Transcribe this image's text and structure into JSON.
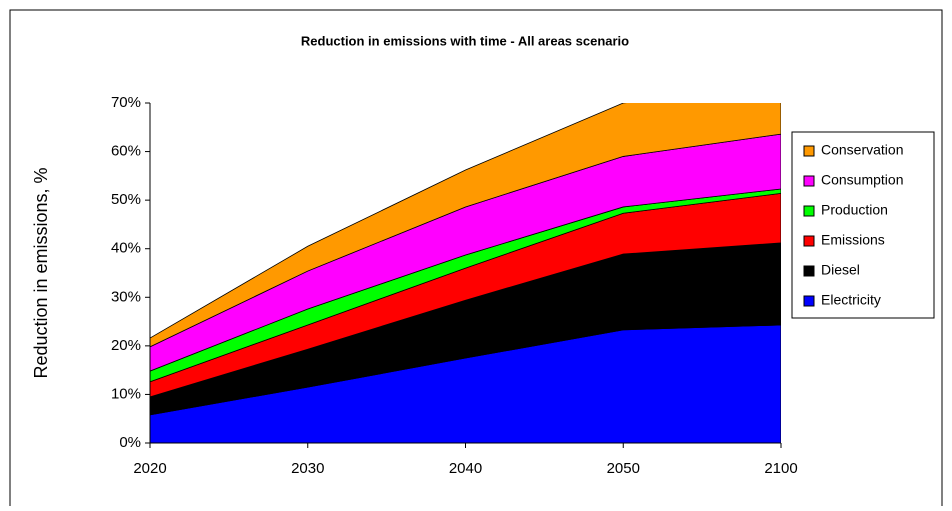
{
  "chart_data": {
    "type": "stacked-area",
    "title": "Reduction in emissions with time - All areas scenario",
    "y_label": "Reduction in emissions, %",
    "categories": [
      "2020",
      "2030",
      "2040",
      "2050",
      "2100"
    ],
    "series": [
      {
        "name": "Electricity",
        "color": "#0000ff",
        "values": [
          5.8,
          11.5,
          17.5,
          23.3,
          24.3
        ]
      },
      {
        "name": "Diesel",
        "color": "#000000",
        "values": [
          3.7,
          7.8,
          11.9,
          15.6,
          16.9
        ]
      },
      {
        "name": "Emissions",
        "color": "#ff0000",
        "values": [
          3.1,
          5.0,
          6.6,
          8.4,
          10.2
        ]
      },
      {
        "name": "Production",
        "color": "#00ff00",
        "values": [
          2.2,
          3.3,
          2.7,
          1.3,
          0.9
        ]
      },
      {
        "name": "Consumption",
        "color": "#ff00ff",
        "values": [
          5.0,
          7.8,
          9.9,
          10.4,
          11.3
        ]
      },
      {
        "name": "Conservation",
        "color": "#ff9900",
        "values": [
          1.8,
          5.1,
          7.6,
          11.0,
          10.0
        ]
      }
    ],
    "ylim": [
      0,
      70
    ],
    "yticks": [
      {
        "value": 0,
        "label": "0%"
      },
      {
        "value": 10,
        "label": "10%"
      },
      {
        "value": 20,
        "label": "20%"
      },
      {
        "value": 30,
        "label": "30%"
      },
      {
        "value": 40,
        "label": "40%"
      },
      {
        "value": 50,
        "label": "50%"
      },
      {
        "value": 60,
        "label": "60%"
      },
      {
        "value": 70,
        "label": "70%"
      }
    ],
    "legend": "right"
  }
}
